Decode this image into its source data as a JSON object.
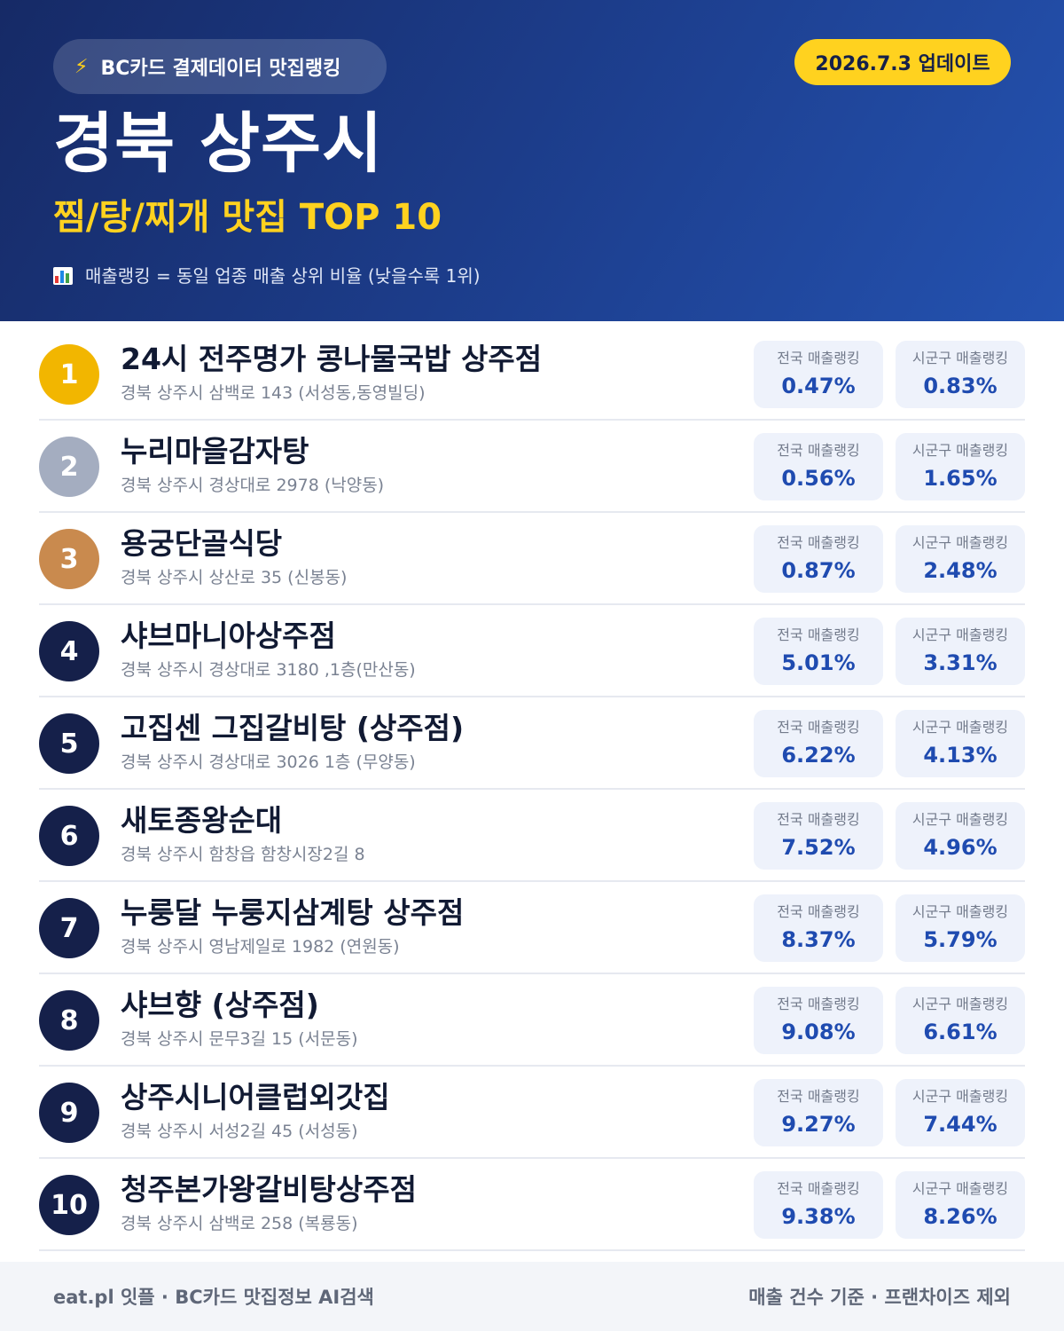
{
  "header": {
    "source_label": "BC카드 결제데이터 맛집랭킹",
    "update_label": "2026.7.3 업데이트",
    "region": "경북 상주시",
    "category": "찜/탕/찌개 맛집 TOP 10",
    "ranking_note": "매출랭킹 = 동일 업종 매출 상위 비율 (낮을수록 1위)"
  },
  "colors": {
    "header_bg": "#1d3f8f",
    "accent_yellow": "#ffd21f",
    "rank_gold": "#f2b600",
    "rank_silver": "#a4adc0",
    "rank_bronze": "#c98a4e",
    "rank_default": "#15204a",
    "value_blue": "#1f4bb0"
  },
  "stat_labels": {
    "national": "전국 매출랭킹",
    "local": "시군구 매출랭킹"
  },
  "restaurants": [
    {
      "rank": "1",
      "name": "24시 전주명가 콩나물국밥 상주점",
      "address": "경북 상주시 삼백로 143 (서성동,동영빌딩)",
      "national": "0.47%",
      "local": "0.83%"
    },
    {
      "rank": "2",
      "name": "누리마을감자탕",
      "address": "경북 상주시 경상대로 2978 (낙양동)",
      "national": "0.56%",
      "local": "1.65%"
    },
    {
      "rank": "3",
      "name": "용궁단골식당",
      "address": "경북 상주시 상산로 35 (신봉동)",
      "national": "0.87%",
      "local": "2.48%"
    },
    {
      "rank": "4",
      "name": "샤브마니아상주점",
      "address": "경북 상주시 경상대로 3180 ,1층(만산동)",
      "national": "5.01%",
      "local": "3.31%"
    },
    {
      "rank": "5",
      "name": "고집센 그집갈비탕 (상주점)",
      "address": "경북 상주시 경상대로 3026 1층 (무양동)",
      "national": "6.22%",
      "local": "4.13%"
    },
    {
      "rank": "6",
      "name": "새토종왕순대",
      "address": "경북 상주시 함창읍 함창시장2길 8",
      "national": "7.52%",
      "local": "4.96%"
    },
    {
      "rank": "7",
      "name": "누룽달 누룽지삼계탕 상주점",
      "address": "경북 상주시 영남제일로 1982 (연원동)",
      "national": "8.37%",
      "local": "5.79%"
    },
    {
      "rank": "8",
      "name": "샤브향 (상주점)",
      "address": "경북 상주시 문무3길 15 (서문동)",
      "national": "9.08%",
      "local": "6.61%"
    },
    {
      "rank": "9",
      "name": "상주시니어클럽외갓집",
      "address": "경북 상주시 서성2길 45 (서성동)",
      "national": "9.27%",
      "local": "7.44%"
    },
    {
      "rank": "10",
      "name": "청주본가왕갈비탕상주점",
      "address": "경북 상주시 삼백로 258 (복룡동)",
      "national": "9.38%",
      "local": "8.26%"
    }
  ],
  "footer": {
    "left": "eat.pl 잇플 · BC카드 맛집정보 AI검색",
    "right": "매출 건수 기준 · 프랜차이즈 제외"
  }
}
